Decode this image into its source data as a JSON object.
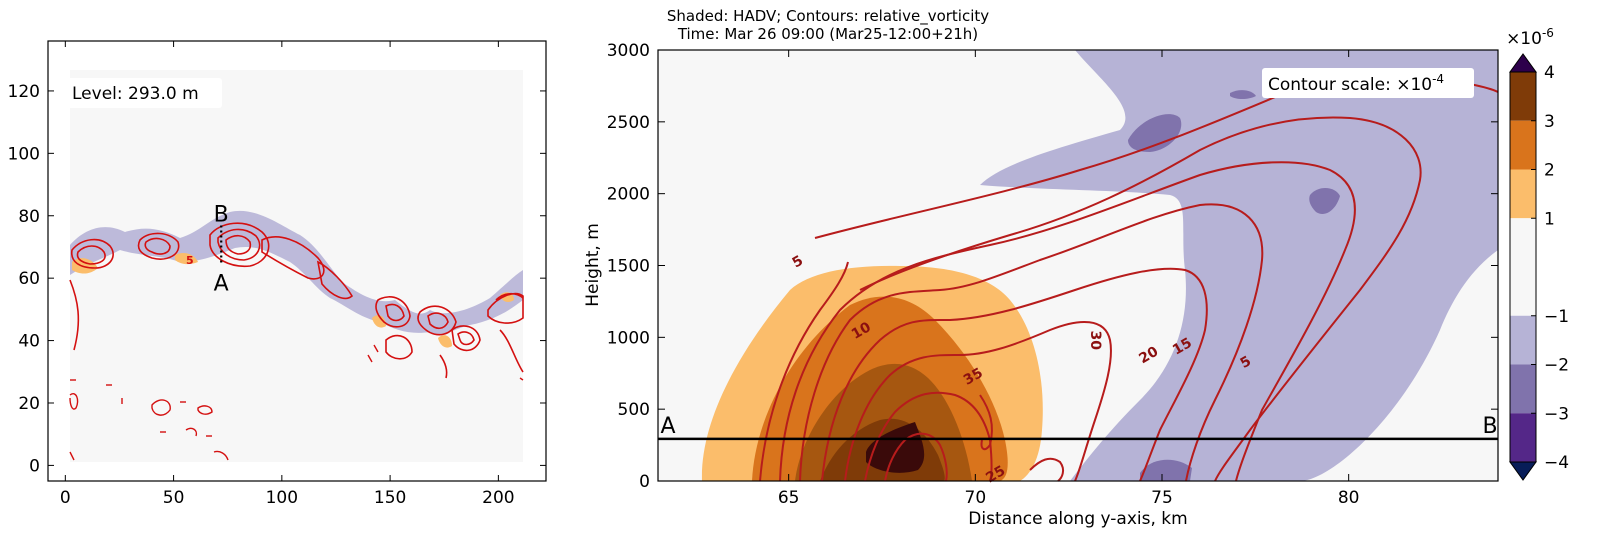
{
  "chart_data": [
    {
      "type": "heatmap",
      "panel": "map",
      "annotation": "Level: 293.0 m",
      "xlim": [
        -8,
        222
      ],
      "ylim": [
        -5,
        136
      ],
      "xticks": [
        0,
        50,
        100,
        150,
        200
      ],
      "yticks": [
        0,
        20,
        40,
        60,
        80,
        100,
        120
      ],
      "section_line": {
        "x": 72,
        "y_start": 65,
        "y_end": 75,
        "start_label": "A",
        "end_label": "B"
      },
      "contour_label": "5"
    },
    {
      "type": "heatmap",
      "panel": "cross-section",
      "title_line1": "Shaded: HADV; Contours: relative_vorticity",
      "title_line2": "Time: Mar 26 09:00 (Mar25-12:00+21h)",
      "xlabel": "Distance along y-axis, km",
      "ylabel": "Height, m",
      "xlim": [
        61.5,
        84
      ],
      "ylim": [
        0,
        3000
      ],
      "xticks": [
        65,
        70,
        75,
        80
      ],
      "yticks": [
        0,
        500,
        1000,
        1500,
        2000,
        2500,
        3000
      ],
      "contour_scale_text": "Contour scale: ×10",
      "contour_scale_exp": "-4",
      "contour_labels": [
        {
          "text": "5",
          "x": 65.3,
          "y": 1500
        },
        {
          "text": "10",
          "x": 67.0,
          "y": 1020
        },
        {
          "text": "35",
          "x": 70.0,
          "y": 700
        },
        {
          "text": "30",
          "x": 73.1,
          "y": 980
        },
        {
          "text": "20",
          "x": 74.7,
          "y": 850
        },
        {
          "text": "15",
          "x": 75.6,
          "y": 910
        },
        {
          "text": "5",
          "x": 77.3,
          "y": 800
        },
        {
          "text": "25",
          "x": 70.6,
          "y": 20
        }
      ],
      "section_line": {
        "height": 293,
        "start_label": "A",
        "end_label": "B"
      },
      "colorbar": {
        "ticks": [
          "4",
          "3",
          "2",
          "1",
          "−1",
          "−2",
          "−3",
          "−4"
        ],
        "multiplier": "×10",
        "multiplier_exp": "-6",
        "levels": [
          {
            "from": 3,
            "to": 4,
            "color": "#7f3b08"
          },
          {
            "from": 2,
            "to": 3,
            "color": "#d9741c"
          },
          {
            "from": 1,
            "to": 2,
            "color": "#fbbd6b"
          },
          {
            "from": -1,
            "to": 1,
            "color": "#f7f7f7"
          },
          {
            "from": -2,
            "to": -1,
            "color": "#b6b3d6"
          },
          {
            "from": -3,
            "to": -2,
            "color": "#8073ac"
          },
          {
            "from": -4,
            "to": -3,
            "color": "#542788"
          }
        ],
        "over_color": "#2d004b",
        "under_color": "#081d58"
      }
    }
  ]
}
